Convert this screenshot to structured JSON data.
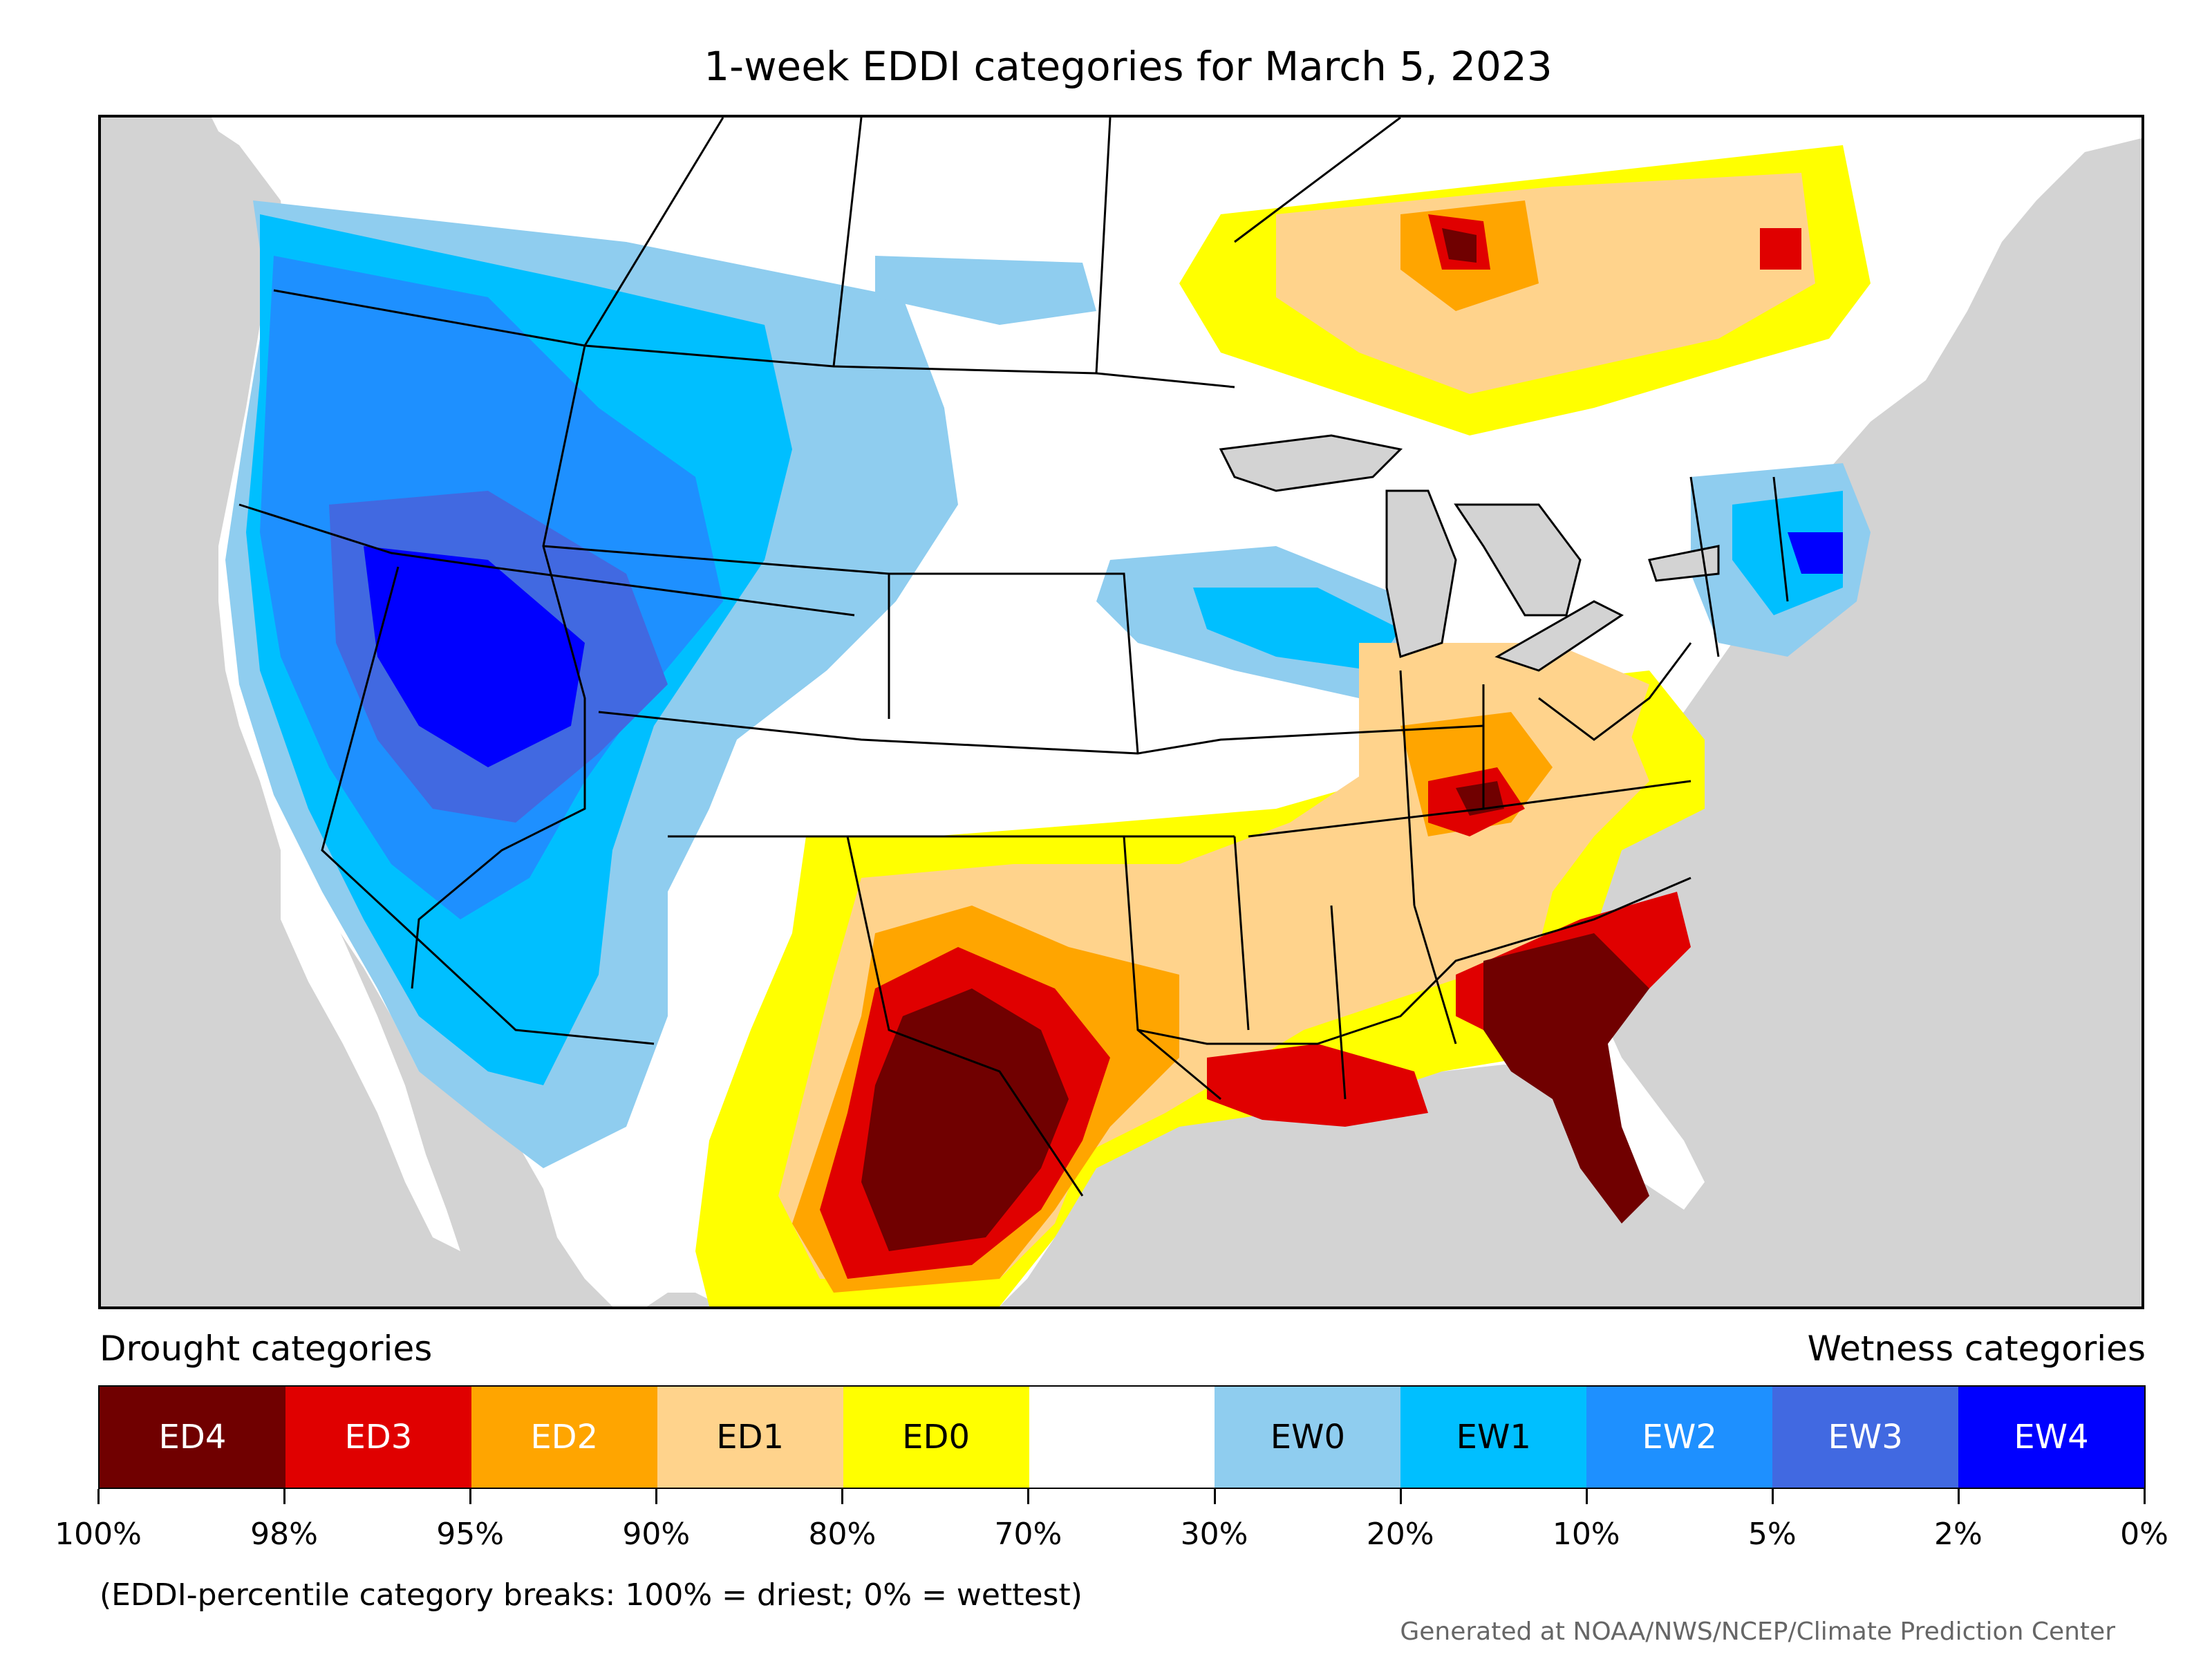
{
  "title": "1-week EDDI categories for March 5, 2023",
  "legend": {
    "drought_label": "Drought categories",
    "wetness_label": "Wetness categories",
    "categories": [
      {
        "label": "ED4",
        "color": "#700000",
        "text_color": "#ffffff"
      },
      {
        "label": "ED3",
        "color": "#e00000",
        "text_color": "#ffffff"
      },
      {
        "label": "ED2",
        "color": "#ffa500",
        "text_color": "#ffffff"
      },
      {
        "label": "ED1",
        "color": "#ffd38c",
        "text_color": "#000000"
      },
      {
        "label": "ED0",
        "color": "#ffff00",
        "text_color": "#000000"
      },
      {
        "label": "",
        "color": "#ffffff",
        "text_color": "#000000"
      },
      {
        "label": "EW0",
        "color": "#8fcdef",
        "text_color": "#000000"
      },
      {
        "label": "EW1",
        "color": "#00bfff",
        "text_color": "#000000"
      },
      {
        "label": "EW2",
        "color": "#1e90ff",
        "text_color": "#ffffff"
      },
      {
        "label": "EW3",
        "color": "#4169e1",
        "text_color": "#ffffff"
      },
      {
        "label": "EW4",
        "color": "#0000ff",
        "text_color": "#ffffff"
      }
    ],
    "tick_labels": [
      "100%",
      "98%",
      "95%",
      "90%",
      "80%",
      "70%",
      "30%",
      "20%",
      "10%",
      "5%",
      "2%",
      "0%"
    ]
  },
  "note": "(EDDI-percentile category breaks: 100% = driest; 0% = wettest)",
  "credit": "Generated at NOAA/NWS/NCEP/Climate Prediction Center",
  "map": {
    "ocean_color": "#d3d3d3",
    "land_color": "#ffffff",
    "border_color": "#000000"
  }
}
